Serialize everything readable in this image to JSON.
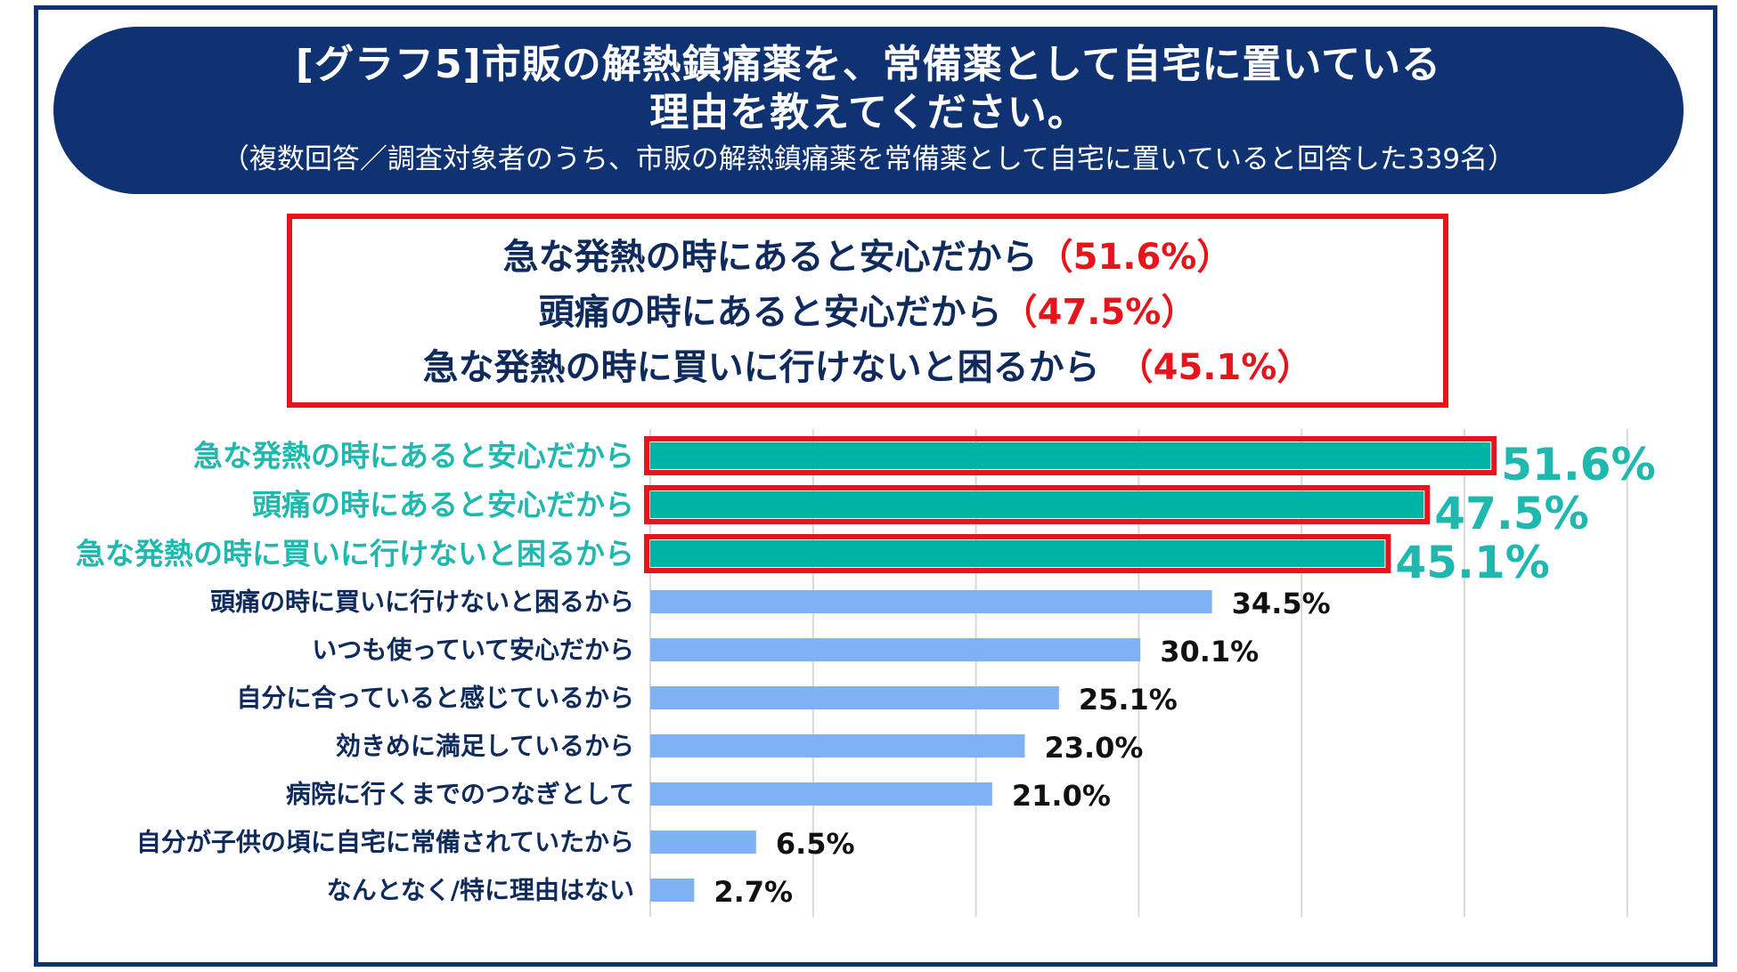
{
  "header": {
    "title_line1": "[グラフ5]市販の解熱鎮痛薬を、常備薬として自宅に置いている",
    "title_line2": "理由を教えてください。",
    "subtitle": "（複数回答／調査対象者のうち、市販の解熱鎮痛薬を常備薬として自宅に置いていると回答した339名）"
  },
  "highlights": [
    {
      "label": "急な発熱の時にあると安心だから",
      "pct": "（51.6%）"
    },
    {
      "label": "頭痛の時にあると安心だから",
      "pct": "（47.5%）"
    },
    {
      "label": "急な発熱の時に買いに行けないと困るから　",
      "pct": "（45.1%）"
    }
  ],
  "colors": {
    "navy": "#0f3272",
    "accent_red": "#e8141c",
    "top_bar": "#00b4a4",
    "top_text": "#1eb8ae",
    "other_bar": "#7fb2f5",
    "label_text": "#0f2a5c"
  },
  "chart_data": {
    "type": "bar",
    "orientation": "horizontal",
    "categories": [
      "急な発熱の時にあると安心だから",
      "頭痛の時にあると安心だから",
      "急な発熱の時に買いに行けないと困るから",
      "頭痛の時に買いに行けないと困るから",
      "いつも使っていて安心だから",
      "自分に合っていると感じているから",
      "効きめに満足しているから",
      "病院に行くまでのつなぎとして",
      "自分が子供の頃に自宅に常備されていたから",
      "なんとなく/特に理由はない"
    ],
    "values": [
      51.6,
      47.5,
      45.1,
      34.5,
      30.1,
      25.1,
      23.0,
      21.0,
      6.5,
      2.7
    ],
    "value_labels": [
      "51.6%",
      "47.5%",
      "45.1%",
      "34.5%",
      "30.1%",
      "25.1%",
      "23.0%",
      "21.0%",
      "6.5%",
      "2.7%"
    ],
    "highlighted": [
      true,
      true,
      true,
      false,
      false,
      false,
      false,
      false,
      false,
      false
    ],
    "xlim": [
      0,
      60
    ],
    "grid": true
  }
}
